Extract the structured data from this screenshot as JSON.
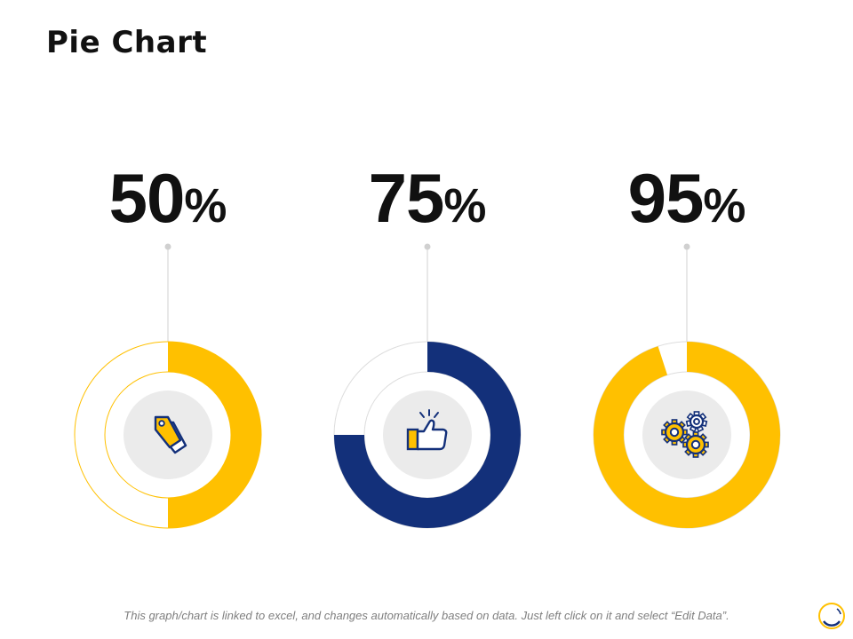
{
  "title": "Pie Chart",
  "footer": "This graph/chart is linked to excel, and changes automatically based on data. Just left click on it and select “Edit Data”.",
  "percent_symbol": "%",
  "colors": {
    "yellow": "#FFC000",
    "navy": "#13307A",
    "track_gray": "#DDDDDD",
    "center_gray": "#EBEBEB",
    "connector": "#D0D0D0"
  },
  "chart_data": {
    "type": "pie",
    "title": "Pie Chart",
    "series": [
      {
        "name": "price-tag",
        "value": 50,
        "label": "50",
        "color": "#FFC000",
        "icon": "price-tag-icon"
      },
      {
        "name": "thumbs-up",
        "value": 75,
        "label": "75",
        "color": "#13307A",
        "icon": "thumbs-up-icon"
      },
      {
        "name": "gears",
        "value": 95,
        "label": "95",
        "color": "#FFC000",
        "icon": "gears-icon"
      }
    ]
  }
}
